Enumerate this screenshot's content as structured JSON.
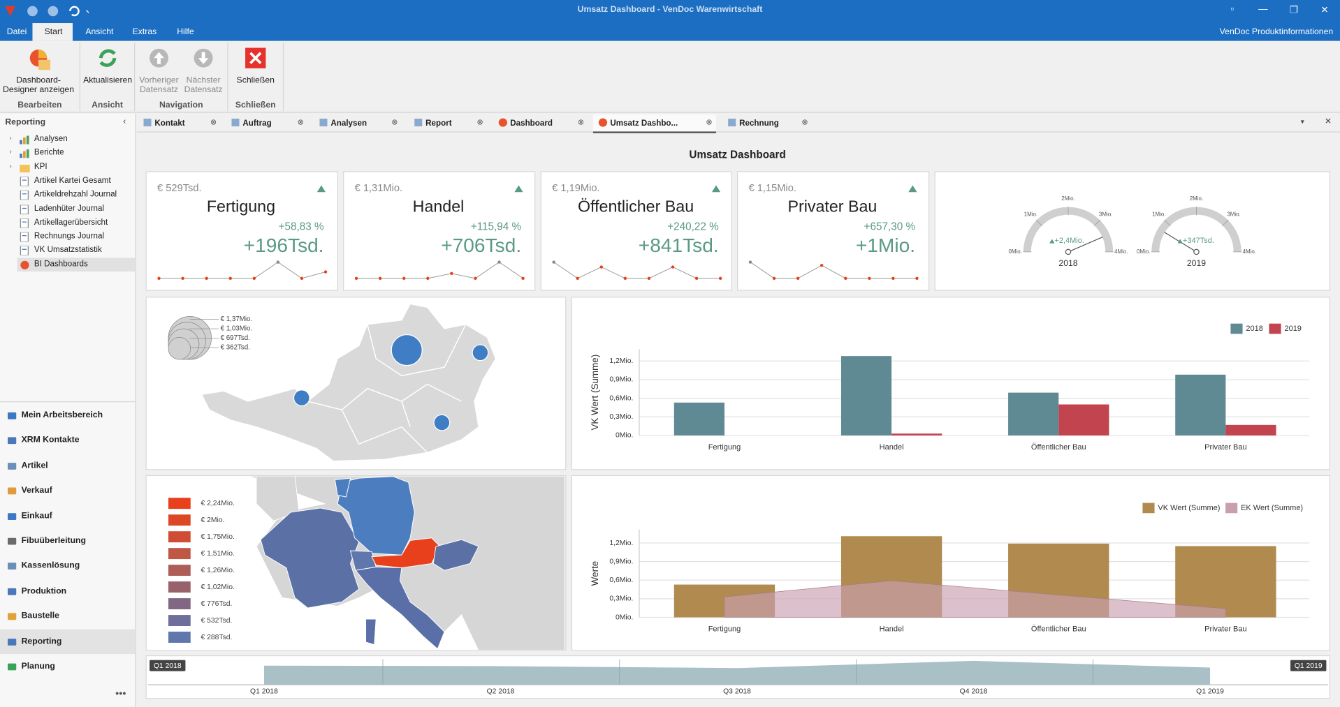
{
  "window": {
    "title": "Umsatz Dashboard - VenDoc Warenwirtschaft"
  },
  "menu": {
    "tabs": [
      "Datei",
      "Start",
      "Ansicht",
      "Extras",
      "Hilfe"
    ],
    "active": 1,
    "right": "VenDoc Produktinformationen"
  },
  "ribbon": {
    "groups": [
      {
        "label": "Bearbeiten",
        "buttons": [
          {
            "label": "Dashboard-Designer anzeigen",
            "enabled": true
          }
        ]
      },
      {
        "label": "Ansicht",
        "buttons": [
          {
            "label": "Aktualisieren",
            "enabled": true
          }
        ]
      },
      {
        "label": "Navigation",
        "buttons": [
          {
            "label": "Vorheriger Datensatz",
            "enabled": false
          },
          {
            "label": "Nächster Datensatz",
            "enabled": false
          }
        ]
      },
      {
        "label": "Schließen",
        "buttons": [
          {
            "label": "Schließen",
            "enabled": true
          }
        ]
      }
    ]
  },
  "sidebar": {
    "header": "Reporting",
    "tree": [
      "Analysen",
      "Berichte",
      "KPI",
      "Artikel Kartei Gesamt",
      "Artikeldrehzahl Journal",
      "Ladenhüter Journal",
      "Artikellagerübersicht",
      "Rechnungs Journal",
      "VK Umsatzstatistik",
      "BI Dashboards"
    ],
    "tree_selected": 9,
    "nav": [
      "Mein Arbeitsbereich",
      "XRM Kontakte",
      "Artikel",
      "Verkauf",
      "Einkauf",
      "Fibuüberleitung",
      "Kassenlösung",
      "Produktion",
      "Baustelle",
      "Reporting",
      "Planung"
    ],
    "nav_active": 9
  },
  "doc_tabs": {
    "tabs": [
      "Kontakt",
      "Auftrag",
      "Analysen",
      "Report",
      "Dashboard",
      "Umsatz Dashbo...",
      "Rechnung"
    ],
    "active": 5
  },
  "dashboard": {
    "title": "Umsatz Dashboard",
    "cards": [
      {
        "total": "€ 529Tsd.",
        "name": "Fertigung",
        "percent": "+58,83 %",
        "delta": "+196Tsd.",
        "spark": [
          0,
          0,
          0,
          0,
          0,
          1,
          0,
          0.4
        ]
      },
      {
        "total": "€ 1,31Mio.",
        "name": "Handel",
        "percent": "+115,94 %",
        "delta": "+706Tsd.",
        "spark": [
          0,
          0,
          0,
          0,
          0.3,
          0,
          1,
          0
        ]
      },
      {
        "total": "€ 1,19Mio.",
        "name": "Öffentlicher Bau",
        "percent": "+240,22 %",
        "delta": "+841Tsd.",
        "spark": [
          1,
          0,
          0.7,
          0,
          0,
          0.7,
          0,
          0
        ]
      },
      {
        "total": "€ 1,15Mio.",
        "name": "Privater Bau",
        "percent": "+657,30 %",
        "delta": "+1Mio.",
        "spark": [
          1,
          0,
          0,
          0.8,
          0,
          0,
          0,
          0
        ]
      }
    ],
    "gauges": {
      "range": [
        0,
        4000000
      ],
      "ticks": [
        {
          "value": 0,
          "label": "0Mio."
        },
        {
          "value": 1000000,
          "label": "1Mio."
        },
        {
          "value": 2000000,
          "label": "2Mio."
        },
        {
          "value": 3000000,
          "label": "3Mio."
        },
        {
          "value": 4000000,
          "label": "4Mio."
        }
      ],
      "items": [
        {
          "year": "2018",
          "value": 3480000,
          "delta": "+2,4Mio."
        },
        {
          "year": "2019",
          "value": 700000,
          "delta": "+347Tsd."
        }
      ]
    },
    "bubble_map": {
      "bubbles": [
        1370000,
        362000,
        362000,
        362000
      ],
      "legend": [
        {
          "value": 1370000,
          "label": "€ 1,37Mio."
        },
        {
          "value": 1030000,
          "label": "€ 1,03Mio."
        },
        {
          "value": 697000,
          "label": "€ 697Tsd."
        },
        {
          "value": 362000,
          "label": "€ 362Tsd."
        }
      ]
    },
    "choropleth": {
      "legend": [
        {
          "label": "€ 2,24Mio.",
          "color": "#e8401c"
        },
        {
          "label": "€ 2Mio.",
          "color": "#dc4826"
        },
        {
          "label": "€ 1,75Mio.",
          "color": "#cf4e33"
        },
        {
          "label": "€ 1,51Mio.",
          "color": "#bf5745"
        },
        {
          "label": "€ 1,26Mio.",
          "color": "#ad5c58"
        },
        {
          "label": "€ 1,02Mio.",
          "color": "#98626c"
        },
        {
          "label": "€ 776Tsd.",
          "color": "#826784"
        },
        {
          "label": "€ 532Tsd.",
          "color": "#6e6d9b"
        },
        {
          "label": "€ 288Tsd.",
          "color": "#5f77ad"
        }
      ]
    },
    "bar_chart": {
      "type": "bar",
      "y_label": "VK Wert (Summe)",
      "categories": [
        "Fertigung",
        "Handel",
        "Öffentlicher Bau",
        "Privater Bau"
      ],
      "series": [
        {
          "name": "2018",
          "color": "#5f8a94",
          "values": [
            530000,
            1280000,
            690000,
            980000
          ]
        },
        {
          "name": "2019",
          "color": "#c1444f",
          "values": [
            0,
            30000,
            500000,
            170000
          ]
        }
      ],
      "ylim": [
        0,
        1390000
      ],
      "yticks": [
        {
          "value": 0,
          "label": "0Mio."
        },
        {
          "value": 300000,
          "label": "0,3Mio."
        },
        {
          "value": 600000,
          "label": "0,6Mio."
        },
        {
          "value": 900000,
          "label": "0,9Mio."
        },
        {
          "value": 1200000,
          "label": "1,2Mio."
        }
      ],
      "grid": true
    },
    "combo_chart": {
      "type": "bar-area",
      "y_label": "Werte",
      "categories": [
        "Fertigung",
        "Handel",
        "Öffentlicher Bau",
        "Privater Bau"
      ],
      "series": [
        {
          "name": "VK Wert (Summe)",
          "type": "bar",
          "color": "#b08a4e",
          "values": [
            529000,
            1310000,
            1190000,
            1150000
          ]
        },
        {
          "name": "EK Wert (Summe)",
          "type": "area",
          "color": "#c99fb0",
          "values": [
            330000,
            590000,
            360000,
            140000
          ]
        }
      ],
      "ylim": [
        0,
        1420000
      ],
      "yticks": [
        {
          "value": 0,
          "label": "0Mio."
        },
        {
          "value": 300000,
          "label": "0,3Mio."
        },
        {
          "value": 600000,
          "label": "0,6Mio."
        },
        {
          "value": 900000,
          "label": "0,9Mio."
        },
        {
          "value": 1200000,
          "label": "1,2Mio."
        }
      ],
      "grid": true
    },
    "range": {
      "start": "Q1 2018",
      "end": "Q1 2019",
      "quarters": [
        "Q1 2018",
        "Q2 2018",
        "Q3 2018",
        "Q4 2018",
        "Q1 2019"
      ],
      "overview": [
        0.8,
        0.78,
        0.7,
        1,
        0.72
      ]
    }
  }
}
